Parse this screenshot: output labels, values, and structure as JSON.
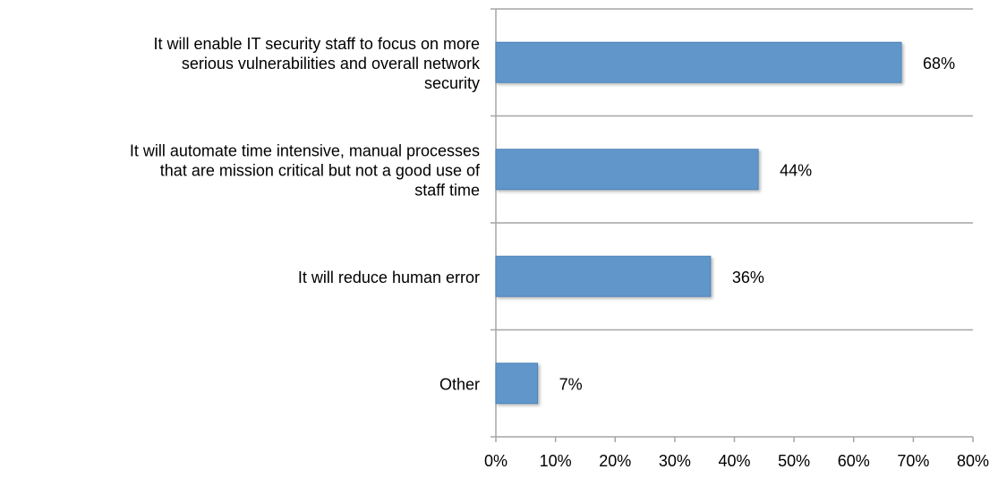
{
  "chart_data": {
    "type": "bar",
    "orientation": "horizontal",
    "categories": [
      "It will enable IT security staff to focus on more serious vulnerabilities and overall network security",
      "It will automate time intensive, manual processes that are mission critical but not a good use of staff time",
      "It will reduce human error",
      "Other"
    ],
    "category_lines": [
      [
        "It will enable IT security staff to focus on more",
        "serious vulnerabilities and overall network",
        "security"
      ],
      [
        "It will automate time intensive, manual processes",
        "that are mission critical but not a good use of",
        "staff time"
      ],
      [
        "It will reduce human error"
      ],
      [
        "Other"
      ]
    ],
    "values": [
      68,
      44,
      36,
      7
    ],
    "value_labels": [
      "68%",
      "44%",
      "36%",
      "7%"
    ],
    "xlim": [
      0,
      80
    ],
    "x_ticks": [
      0,
      10,
      20,
      30,
      40,
      50,
      60,
      70,
      80
    ],
    "x_tick_labels": [
      "0%",
      "10%",
      "20%",
      "30%",
      "40%",
      "50%",
      "60%",
      "70%",
      "80%"
    ],
    "gridlines": "horizontal category separators",
    "legend": "none",
    "title": "",
    "xlabel": "",
    "ylabel": "",
    "colors": {
      "bar": "#6096C9",
      "bar_edge": "#4F84B8",
      "axis": "#A6A6A6",
      "text": "#000000"
    }
  }
}
